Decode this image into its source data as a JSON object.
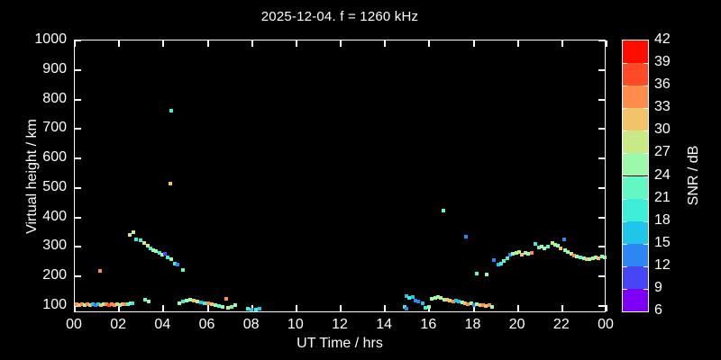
{
  "chart_data": {
    "type": "scatter",
    "title": "2025-12-04. f = 1260 kHz",
    "xlabel": "UT Time / hrs",
    "ylabel": "Virtual height / km",
    "xlim": [
      0,
      24
    ],
    "ylim": [
      75,
      1000
    ],
    "x_tick_labels": [
      "00",
      "02",
      "04",
      "06",
      "08",
      "10",
      "12",
      "14",
      "16",
      "18",
      "20",
      "22",
      "00"
    ],
    "x_tick_values": [
      0,
      2,
      4,
      6,
      8,
      10,
      12,
      14,
      16,
      18,
      20,
      22,
      24
    ],
    "y_tick_labels": [
      "1000",
      "900",
      "800",
      "700",
      "600",
      "500",
      "400",
      "300",
      "200",
      "100"
    ],
    "y_tick_values": [
      1000,
      900,
      800,
      700,
      600,
      500,
      400,
      300,
      200,
      100
    ],
    "grid": false,
    "background": "#000000",
    "legend_position": "colorbar-right",
    "point_note": "points are [UT_hours, virtual_height_km, SNR_dB]",
    "points": [
      [
        0.08,
        105,
        34
      ],
      [
        0.2,
        104,
        31
      ],
      [
        0.33,
        105,
        34
      ],
      [
        0.45,
        104,
        28
      ],
      [
        0.57,
        105,
        34
      ],
      [
        0.7,
        104,
        31
      ],
      [
        0.82,
        105,
        16
      ],
      [
        0.94,
        104,
        13
      ],
      [
        1.06,
        105,
        16
      ],
      [
        1.18,
        104,
        31
      ],
      [
        1.3,
        105,
        25
      ],
      [
        1.43,
        105,
        34
      ],
      [
        1.55,
        104,
        37
      ],
      [
        1.67,
        105,
        34
      ],
      [
        1.8,
        104,
        34
      ],
      [
        1.92,
        105,
        31
      ],
      [
        2.04,
        104,
        25
      ],
      [
        2.16,
        105,
        31
      ],
      [
        2.28,
        106,
        34
      ],
      [
        2.4,
        106,
        22
      ],
      [
        2.52,
        108,
        25
      ],
      [
        2.6,
        110,
        19
      ],
      [
        1.14,
        219,
        34
      ],
      [
        2.48,
        342,
        28
      ],
      [
        2.64,
        351,
        28
      ],
      [
        2.77,
        326,
        19
      ],
      [
        2.97,
        323,
        19
      ],
      [
        3.13,
        314,
        28
      ],
      [
        3.3,
        305,
        28
      ],
      [
        3.42,
        296,
        19
      ],
      [
        3.54,
        290,
        25
      ],
      [
        3.66,
        287,
        25
      ],
      [
        3.82,
        280,
        19
      ],
      [
        3.95,
        274,
        25
      ],
      [
        4.07,
        277,
        10
      ],
      [
        4.19,
        265,
        19
      ],
      [
        4.35,
        259,
        25
      ],
      [
        4.52,
        244,
        19
      ],
      [
        4.64,
        241,
        13
      ],
      [
        4.88,
        222,
        22
      ],
      [
        3.17,
        120,
        22
      ],
      [
        3.34,
        115,
        25
      ],
      [
        4.35,
        763,
        19
      ],
      [
        4.31,
        516,
        31
      ],
      [
        4.72,
        109,
        25
      ],
      [
        4.88,
        115,
        19
      ],
      [
        5.05,
        118,
        25
      ],
      [
        5.21,
        121,
        25
      ],
      [
        5.37,
        118,
        31
      ],
      [
        5.53,
        115,
        28
      ],
      [
        5.7,
        112,
        16
      ],
      [
        5.86,
        109,
        19
      ],
      [
        6.02,
        109,
        34
      ],
      [
        6.18,
        106,
        31
      ],
      [
        6.34,
        103,
        25
      ],
      [
        6.51,
        100,
        22
      ],
      [
        6.67,
        97,
        25
      ],
      [
        6.83,
        124,
        34
      ],
      [
        6.92,
        94,
        28
      ],
      [
        7.08,
        97,
        22
      ],
      [
        7.24,
        103,
        25
      ],
      [
        7.8,
        91,
        19
      ],
      [
        7.97,
        88,
        16
      ],
      [
        8.18,
        88,
        19
      ],
      [
        8.34,
        91,
        16
      ],
      [
        14.89,
        97,
        19
      ],
      [
        14.97,
        134,
        16
      ],
      [
        14.97,
        91,
        13
      ],
      [
        15.09,
        128,
        19
      ],
      [
        15.26,
        131,
        16
      ],
      [
        15.38,
        118,
        13
      ],
      [
        15.5,
        115,
        13
      ],
      [
        15.7,
        109,
        16
      ],
      [
        15.82,
        94,
        19
      ],
      [
        15.99,
        97,
        25
      ],
      [
        16.11,
        124,
        25
      ],
      [
        16.27,
        128,
        25
      ],
      [
        16.39,
        131,
        25
      ],
      [
        16.51,
        128,
        28
      ],
      [
        16.68,
        121,
        25
      ],
      [
        16.8,
        121,
        31
      ],
      [
        16.92,
        118,
        31
      ],
      [
        17.09,
        115,
        34
      ],
      [
        17.21,
        118,
        16
      ],
      [
        17.33,
        115,
        16
      ],
      [
        17.49,
        112,
        25
      ],
      [
        17.61,
        109,
        31
      ],
      [
        17.74,
        106,
        34
      ],
      [
        17.9,
        109,
        25
      ],
      [
        18.02,
        103,
        13
      ],
      [
        18.14,
        106,
        25
      ],
      [
        18.31,
        103,
        31
      ],
      [
        18.43,
        103,
        34
      ],
      [
        18.55,
        100,
        31
      ],
      [
        18.71,
        103,
        34
      ],
      [
        18.83,
        97,
        25
      ],
      [
        18.15,
        210,
        22
      ],
      [
        18.6,
        207,
        25
      ],
      [
        16.64,
        424,
        22
      ],
      [
        17.65,
        335,
        13
      ],
      [
        18.92,
        256,
        13
      ],
      [
        19.12,
        241,
        16
      ],
      [
        19.24,
        244,
        19
      ],
      [
        19.36,
        253,
        22
      ],
      [
        19.53,
        262,
        19
      ],
      [
        19.65,
        274,
        13
      ],
      [
        19.77,
        277,
        25
      ],
      [
        19.93,
        280,
        25
      ],
      [
        20.06,
        283,
        28
      ],
      [
        20.18,
        274,
        31
      ],
      [
        20.34,
        280,
        28
      ],
      [
        20.46,
        277,
        25
      ],
      [
        20.63,
        280,
        34
      ],
      [
        20.79,
        311,
        19
      ],
      [
        20.95,
        298,
        22
      ],
      [
        21.07,
        301,
        25
      ],
      [
        21.2,
        295,
        25
      ],
      [
        21.36,
        301,
        22
      ],
      [
        21.56,
        314,
        28
      ],
      [
        21.68,
        308,
        25
      ],
      [
        21.81,
        305,
        25
      ],
      [
        21.93,
        295,
        31
      ],
      [
        22.09,
        326,
        13
      ],
      [
        22.13,
        289,
        25
      ],
      [
        22.26,
        283,
        25
      ],
      [
        22.42,
        277,
        28
      ],
      [
        22.54,
        271,
        34
      ],
      [
        22.66,
        268,
        25
      ],
      [
        22.83,
        265,
        22
      ],
      [
        22.99,
        262,
        25
      ],
      [
        23.11,
        259,
        31
      ],
      [
        23.24,
        259,
        25
      ],
      [
        23.4,
        262,
        28
      ],
      [
        23.52,
        265,
        25
      ],
      [
        23.64,
        262,
        31
      ],
      [
        23.81,
        268,
        25
      ],
      [
        23.93,
        265,
        25
      ]
    ],
    "colorbar": {
      "label": "SNR / dB",
      "tick_labels": [
        "42",
        "39",
        "36",
        "33",
        "30",
        "27",
        "24",
        "21",
        "18",
        "15",
        "12",
        "9",
        "6"
      ],
      "segment_colors_top_to_bottom": [
        "#ff0e00",
        "#ff4a27",
        "#fd8c4d",
        "#f2c368",
        "#c9e886",
        "#9cf8ab",
        "#63f8c3",
        "#3eeed8",
        "#1fc6ea",
        "#2e85f4",
        "#4746f4",
        "#7d00f5"
      ],
      "min": 6,
      "max": 42,
      "step": 3
    }
  },
  "colors": {
    "background": "#000000",
    "axis": "#ffffff",
    "text": "#ffffff"
  }
}
